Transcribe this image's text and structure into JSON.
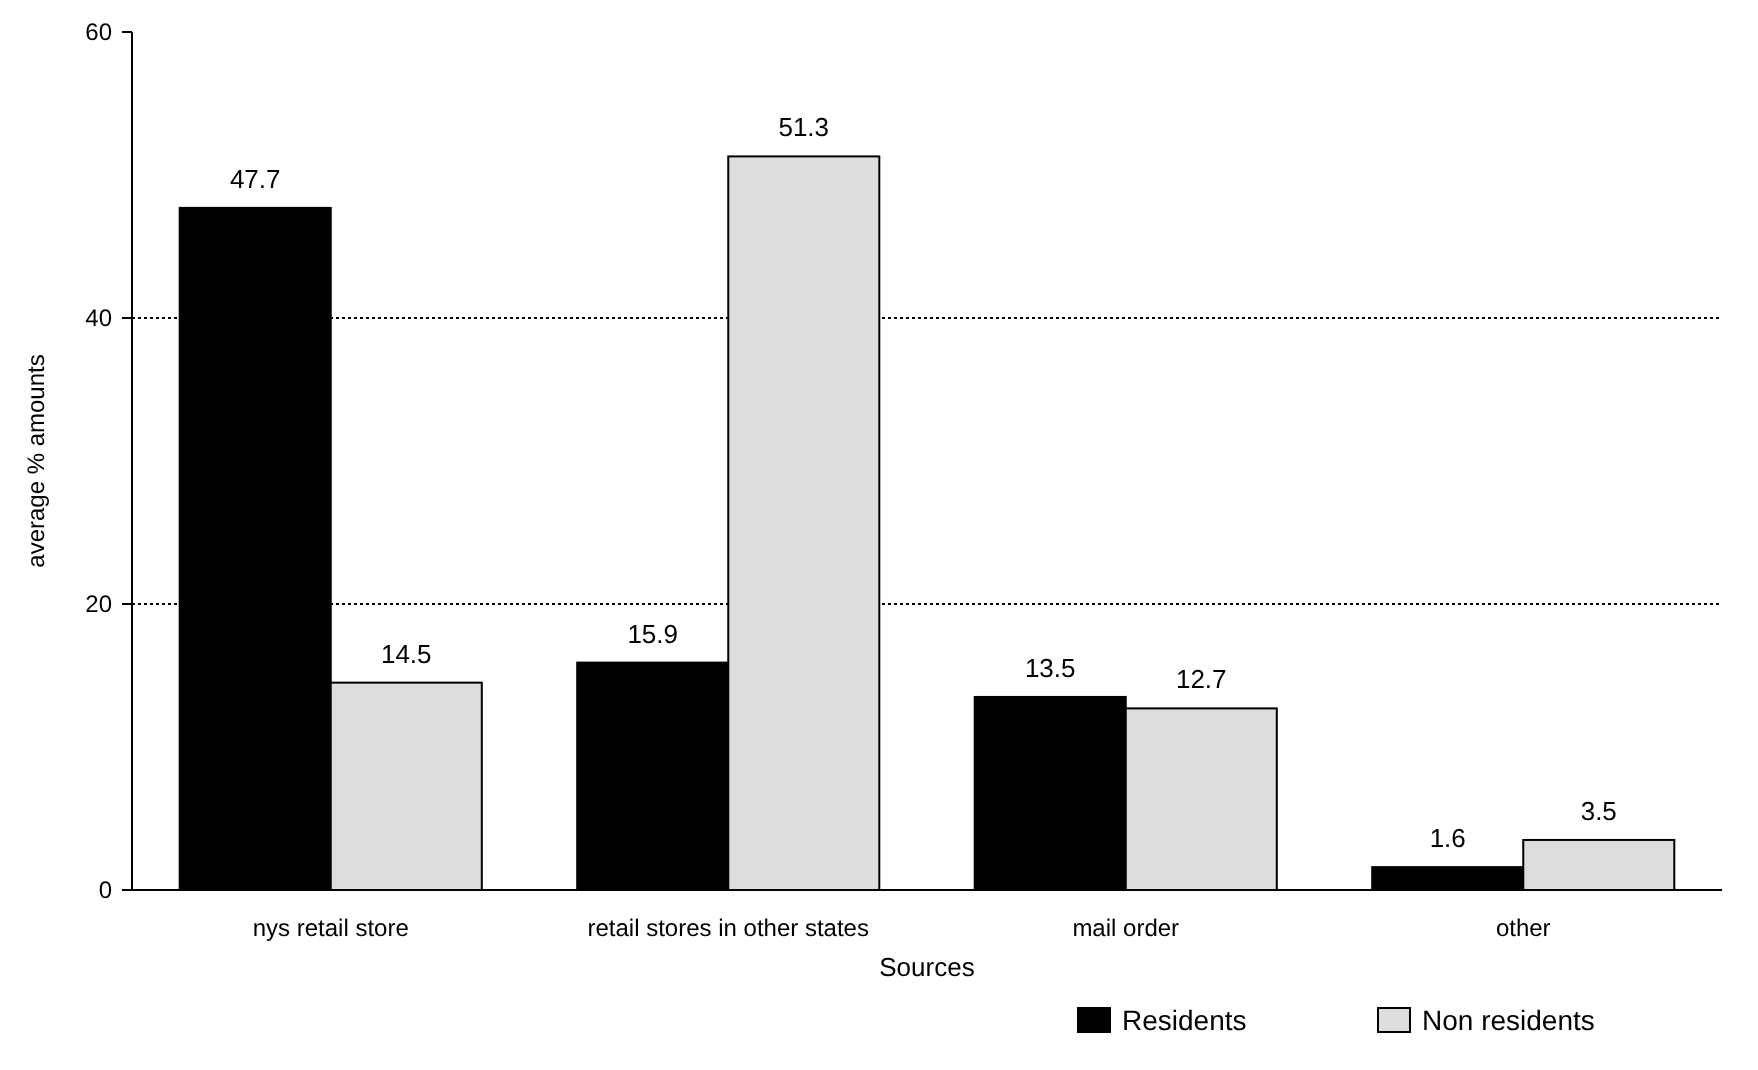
{
  "chart_data": {
    "type": "bar",
    "xlabel": "Sources",
    "ylabel": "average % amounts",
    "categories": [
      "nys retail store",
      "retail stores in other states",
      "mail order",
      "other"
    ],
    "series": [
      {
        "name": "Residents",
        "color": "#000000",
        "values": [
          47.7,
          15.9,
          13.5,
          1.6
        ]
      },
      {
        "name": "Non residents",
        "color": "#dddddd",
        "values": [
          14.5,
          51.3,
          12.7,
          3.5
        ]
      }
    ],
    "ylim": [
      0,
      60
    ],
    "yticks": [
      0,
      20,
      40,
      60
    ],
    "grid": "y",
    "data_labels": true,
    "legend": "bottom right"
  }
}
